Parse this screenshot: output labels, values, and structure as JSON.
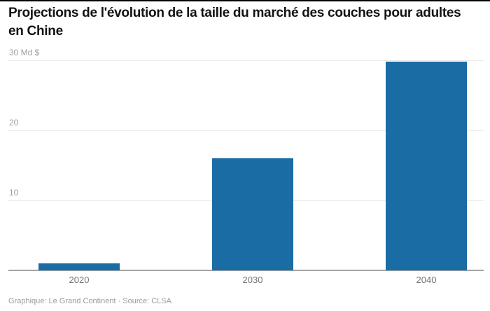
{
  "header": {
    "title": "Projections de l'évolution de la taille du marché des couches pour adultes en Chine"
  },
  "chart_data": {
    "type": "bar",
    "title": "Projections de l'évolution de la taille du marché des couches pour adultes en Chine",
    "categories": [
      "2020",
      "2030",
      "2040"
    ],
    "values": [
      1,
      16,
      29.8
    ],
    "unit": "Md $",
    "xlabel": "",
    "ylabel": "",
    "ylim": [
      0,
      30
    ],
    "yticks": [
      {
        "value": 10,
        "label": "10"
      },
      {
        "value": 20,
        "label": "20"
      },
      {
        "value": 30,
        "label": "30 Md $"
      }
    ],
    "grid": "horizontal",
    "legend": "none",
    "bar_color": "#1a6ca4",
    "gridline_color": "#ececec",
    "axis_color": "#a5a5a5"
  },
  "footer": {
    "credit": "Graphique: Le Grand Continent · Source: CLSA"
  }
}
